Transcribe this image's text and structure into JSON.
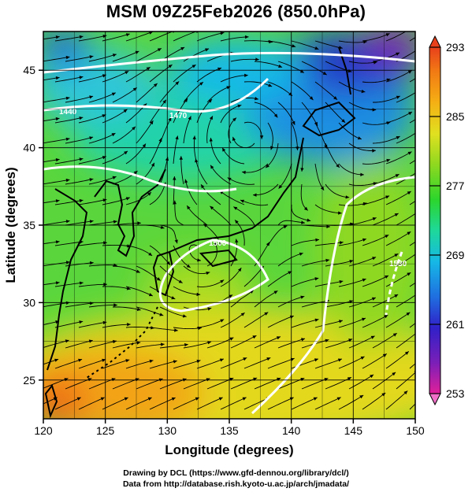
{
  "title": "MSM 09Z25Feb2026 (850.0hPa)",
  "x_axis": {
    "label": "Longitude (degrees)",
    "ticks": [
      120,
      125,
      130,
      135,
      140,
      145,
      150
    ],
    "range": [
      120,
      150
    ]
  },
  "y_axis": {
    "label": "Latitude  (degrees)",
    "ticks": [
      25,
      30,
      35,
      40,
      45
    ],
    "range": [
      22.5,
      47.5
    ]
  },
  "colorbar": {
    "ticks": [
      293,
      285,
      277,
      269,
      261,
      253
    ],
    "range": [
      253,
      293
    ],
    "colors": [
      "#e0209a",
      "#7a1fb8",
      "#3020c8",
      "#1f6fe0",
      "#16b8e6",
      "#1ed89a",
      "#2cd52c",
      "#8ed820",
      "#e0e020",
      "#f5b014",
      "#f27a14",
      "#e8401c"
    ]
  },
  "contour_labels": [
    "1440",
    "1470",
    "1500",
    "1530"
  ],
  "credits": {
    "line1": "Drawing by DCL (https://www.gfd-dennou.org/library/dcl/)",
    "line2": "Data from http://database.rish.kyoto-u.ac.jp/arch/jmadata/"
  }
}
